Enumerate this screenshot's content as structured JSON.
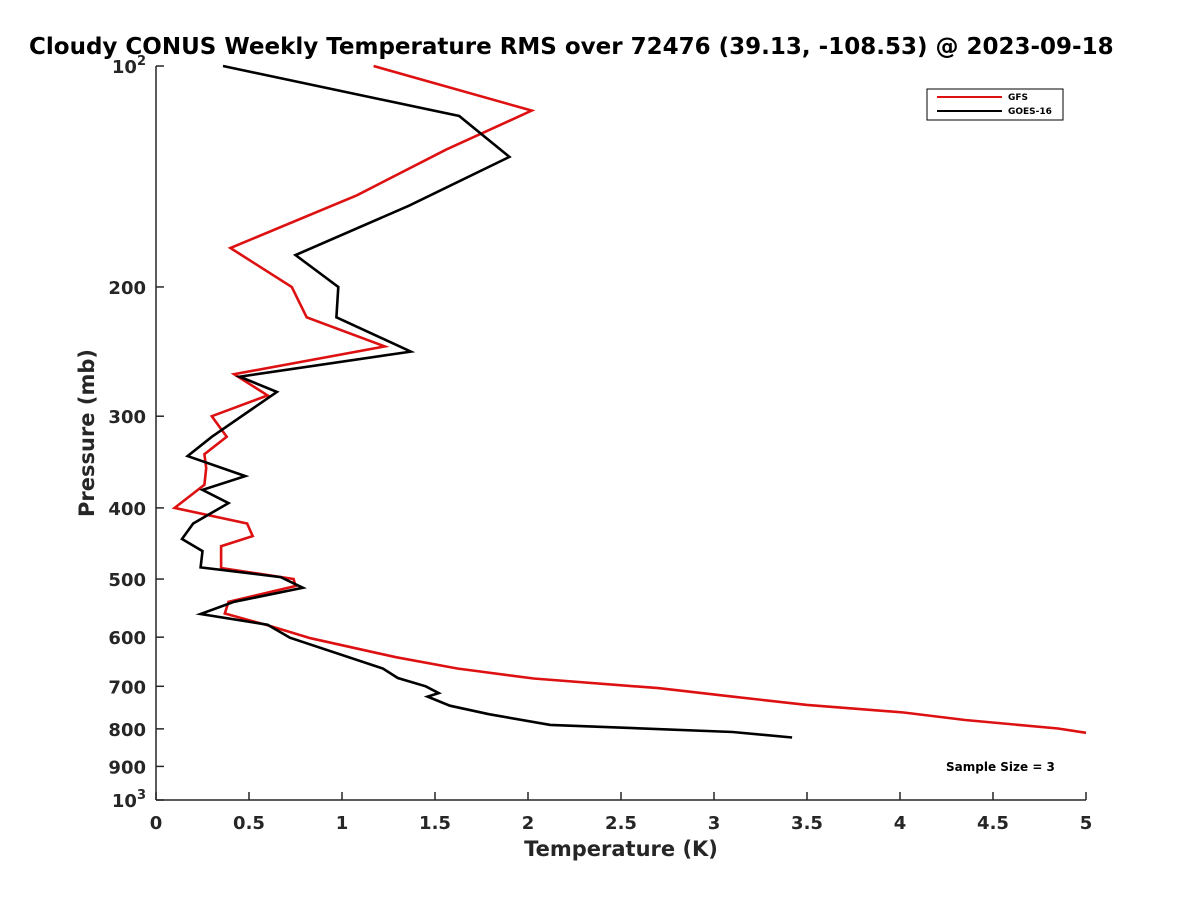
{
  "chart_data": {
    "type": "line",
    "title": "Cloudy CONUS Weekly Temperature RMS over 72476 (39.13, -108.53) @ 2023-09-18",
    "xlabel": "Temperature (K)",
    "ylabel": "Pressure (mb)",
    "xlim": [
      0,
      5
    ],
    "ylim": [
      100,
      1000
    ],
    "y_scale": "log",
    "y_reversed": true,
    "grid": false,
    "legend_position": "top-right",
    "x_ticks": [
      0,
      0.5,
      1,
      1.5,
      2,
      2.5,
      3,
      3.5,
      4,
      4.5,
      5
    ],
    "x_tick_labels": [
      "0",
      "0.5",
      "1",
      "1.5",
      "2",
      "2.5",
      "3",
      "3.5",
      "4",
      "4.5",
      "5"
    ],
    "y_ticks": [
      {
        "value": 100,
        "base": "10",
        "exp": "2"
      },
      {
        "value": 200,
        "label": "200"
      },
      {
        "value": 300,
        "label": "300"
      },
      {
        "value": 400,
        "label": "400"
      },
      {
        "value": 500,
        "label": "500"
      },
      {
        "value": 600,
        "label": "600"
      },
      {
        "value": 700,
        "label": "700"
      },
      {
        "value": 800,
        "label": "800"
      },
      {
        "value": 900,
        "label": "900"
      },
      {
        "value": 1000,
        "base": "10",
        "exp": "3"
      }
    ],
    "series": [
      {
        "name": "GFS",
        "color": "#dd1111",
        "points": [
          [
            1.17,
            100
          ],
          [
            2.02,
            115
          ],
          [
            1.56,
            130
          ],
          [
            1.08,
            150
          ],
          [
            0.4,
            177
          ],
          [
            0.73,
            200
          ],
          [
            0.81,
            220
          ],
          [
            1.23,
            241
          ],
          [
            0.42,
            263
          ],
          [
            0.6,
            281
          ],
          [
            0.3,
            300
          ],
          [
            0.38,
            320
          ],
          [
            0.26,
            338
          ],
          [
            0.27,
            353
          ],
          [
            0.26,
            372
          ],
          [
            0.1,
            400
          ],
          [
            0.49,
            420
          ],
          [
            0.52,
            437
          ],
          [
            0.35,
            451
          ],
          [
            0.35,
            483
          ],
          [
            0.74,
            500
          ],
          [
            0.75,
            511
          ],
          [
            0.39,
            537
          ],
          [
            0.37,
            557
          ],
          [
            0.6,
            578
          ],
          [
            0.83,
            602
          ],
          [
            1.29,
            639
          ],
          [
            1.62,
            662
          ],
          [
            2.03,
            683
          ],
          [
            2.7,
            704
          ],
          [
            3.08,
            722
          ],
          [
            3.5,
            742
          ],
          [
            4.02,
            760
          ],
          [
            4.35,
            778
          ],
          [
            4.85,
            799
          ],
          [
            5.0,
            810
          ]
        ]
      },
      {
        "name": "GOES-16",
        "color": "#000000",
        "points": [
          [
            0.36,
            100
          ],
          [
            1.63,
            117
          ],
          [
            1.9,
            133
          ],
          [
            1.36,
            155
          ],
          [
            0.75,
            181
          ],
          [
            0.98,
            200
          ],
          [
            0.97,
            220
          ],
          [
            1.37,
            245
          ],
          [
            0.45,
            265
          ],
          [
            0.65,
            278
          ],
          [
            0.3,
            320
          ],
          [
            0.17,
            340
          ],
          [
            0.48,
            362
          ],
          [
            0.25,
            378
          ],
          [
            0.39,
            394
          ],
          [
            0.2,
            420
          ],
          [
            0.14,
            441
          ],
          [
            0.25,
            458
          ],
          [
            0.24,
            482
          ],
          [
            0.67,
            497
          ],
          [
            0.79,
            514
          ],
          [
            0.42,
            537
          ],
          [
            0.24,
            558
          ],
          [
            0.6,
            577
          ],
          [
            0.72,
            601
          ],
          [
            1.22,
            662
          ],
          [
            1.3,
            682
          ],
          [
            1.45,
            700
          ],
          [
            1.52,
            715
          ],
          [
            1.46,
            723
          ],
          [
            1.58,
            744
          ],
          [
            1.79,
            764
          ],
          [
            2.12,
            790
          ],
          [
            3.1,
            808
          ],
          [
            3.42,
            822
          ]
        ]
      }
    ],
    "annotations": [
      {
        "text": "Sample Size = 3",
        "x": 4.5,
        "y": 900
      }
    ]
  }
}
